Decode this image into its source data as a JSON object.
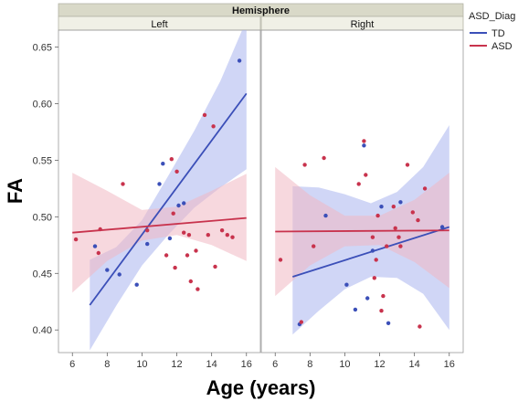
{
  "chart_data": {
    "type": "scatter",
    "facet_title": "Hemisphere",
    "facets": [
      "Left",
      "Right"
    ],
    "xlabel": "Age (years)",
    "ylabel": "FA",
    "xlim": [
      5.2,
      16.8
    ],
    "ylim": [
      0.38,
      0.665
    ],
    "xticks": [
      6,
      8,
      10,
      12,
      14,
      16
    ],
    "yticks": [
      0.4,
      0.45,
      0.5,
      0.55,
      0.6,
      0.65
    ],
    "ytick_labels": [
      "0.40",
      "0.45",
      "0.50",
      "0.55",
      "0.60",
      "0.65"
    ],
    "grid": false,
    "legend": {
      "title": "ASD_Diag",
      "position": "top-right",
      "entries": [
        {
          "label": "TD",
          "color": "#3b4fb8"
        },
        {
          "label": "ASD",
          "color": "#c8334d"
        }
      ]
    },
    "series": [
      {
        "name": "TD",
        "color": "#3b4fb8",
        "band_color": "#aab5ee",
        "panels": [
          {
            "facet": "Left",
            "points": [
              [
                7.3,
                0.474
              ],
              [
                8.0,
                0.453
              ],
              [
                8.7,
                0.449
              ],
              [
                9.7,
                0.44
              ],
              [
                10.3,
                0.476
              ],
              [
                11.0,
                0.529
              ],
              [
                11.2,
                0.547
              ],
              [
                11.6,
                0.481
              ],
              [
                12.1,
                0.51
              ],
              [
                12.4,
                0.512
              ],
              [
                15.6,
                0.638
              ]
            ],
            "fit": {
              "x": [
                7.0,
                16.0
              ],
              "y": [
                0.422,
                0.609
              ]
            },
            "ci": {
              "x": [
                7.0,
                8.5,
                10.0,
                11.5,
                13.0,
                14.5,
                16.0
              ],
              "lower": [
                0.382,
                0.421,
                0.457,
                0.484,
                0.508,
                0.526,
                0.542
              ],
              "upper": [
                0.462,
                0.473,
                0.497,
                0.536,
                0.576,
                0.62,
                0.674
              ]
            }
          },
          {
            "facet": "Right",
            "points": [
              [
                7.4,
                0.405
              ],
              [
                8.9,
                0.501
              ],
              [
                10.1,
                0.44
              ],
              [
                10.6,
                0.418
              ],
              [
                11.1,
                0.563
              ],
              [
                11.3,
                0.428
              ],
              [
                11.6,
                0.47
              ],
              [
                12.1,
                0.509
              ],
              [
                12.5,
                0.406
              ],
              [
                13.2,
                0.513
              ],
              [
                15.6,
                0.491
              ]
            ],
            "fit": {
              "x": [
                7.0,
                16.0
              ],
              "y": [
                0.447,
                0.491
              ]
            },
            "ci": {
              "x": [
                7.0,
                8.5,
                10.0,
                11.5,
                13.0,
                14.5,
                16.0
              ],
              "lower": [
                0.396,
                0.417,
                0.436,
                0.447,
                0.446,
                0.432,
                0.4
              ],
              "upper": [
                0.527,
                0.526,
                0.52,
                0.512,
                0.522,
                0.544,
                0.581
              ]
            }
          }
        ]
      },
      {
        "name": "ASD",
        "color": "#c8334d",
        "band_color": "#f0b8c3",
        "panels": [
          {
            "facet": "Left",
            "points": [
              [
                6.2,
                0.48
              ],
              [
                7.5,
                0.468
              ],
              [
                7.6,
                0.489
              ],
              [
                8.9,
                0.529
              ],
              [
                10.3,
                0.488
              ],
              [
                11.4,
                0.466
              ],
              [
                11.7,
                0.551
              ],
              [
                11.8,
                0.503
              ],
              [
                11.9,
                0.455
              ],
              [
                12.0,
                0.54
              ],
              [
                12.4,
                0.486
              ],
              [
                12.6,
                0.466
              ],
              [
                12.7,
                0.484
              ],
              [
                12.8,
                0.443
              ],
              [
                13.1,
                0.47
              ],
              [
                13.2,
                0.436
              ],
              [
                13.6,
                0.59
              ],
              [
                13.8,
                0.484
              ],
              [
                14.1,
                0.58
              ],
              [
                14.2,
                0.456
              ],
              [
                14.6,
                0.488
              ],
              [
                14.9,
                0.484
              ],
              [
                15.2,
                0.482
              ]
            ],
            "fit": {
              "x": [
                6.0,
                16.0
              ],
              "y": [
                0.486,
                0.499
              ]
            },
            "ci": {
              "x": [
                6.0,
                8.0,
                10.0,
                12.0,
                14.0,
                16.0
              ],
              "lower": [
                0.433,
                0.461,
                0.479,
                0.484,
                0.475,
                0.461
              ],
              "upper": [
                0.539,
                0.523,
                0.506,
                0.509,
                0.523,
                0.538
              ]
            }
          },
          {
            "facet": "Right",
            "points": [
              [
                6.3,
                0.462
              ],
              [
                7.5,
                0.407
              ],
              [
                7.7,
                0.546
              ],
              [
                8.2,
                0.474
              ],
              [
                8.8,
                0.552
              ],
              [
                10.8,
                0.529
              ],
              [
                11.1,
                0.567
              ],
              [
                11.2,
                0.537
              ],
              [
                11.6,
                0.482
              ],
              [
                11.7,
                0.446
              ],
              [
                11.8,
                0.462
              ],
              [
                11.9,
                0.501
              ],
              [
                12.1,
                0.417
              ],
              [
                12.2,
                0.43
              ],
              [
                12.4,
                0.474
              ],
              [
                12.8,
                0.509
              ],
              [
                12.9,
                0.49
              ],
              [
                13.1,
                0.482
              ],
              [
                13.2,
                0.474
              ],
              [
                13.6,
                0.546
              ],
              [
                13.9,
                0.504
              ],
              [
                14.2,
                0.497
              ],
              [
                14.3,
                0.403
              ],
              [
                14.6,
                0.525
              ]
            ],
            "fit": {
              "x": [
                6.0,
                16.0
              ],
              "y": [
                0.487,
                0.488
              ]
            },
            "ci": {
              "x": [
                6.0,
                8.0,
                10.0,
                12.0,
                14.0,
                16.0
              ],
              "lower": [
                0.43,
                0.457,
                0.474,
                0.475,
                0.46,
                0.437
              ],
              "upper": [
                0.544,
                0.519,
                0.501,
                0.501,
                0.515,
                0.539
              ]
            }
          }
        ]
      }
    ]
  }
}
